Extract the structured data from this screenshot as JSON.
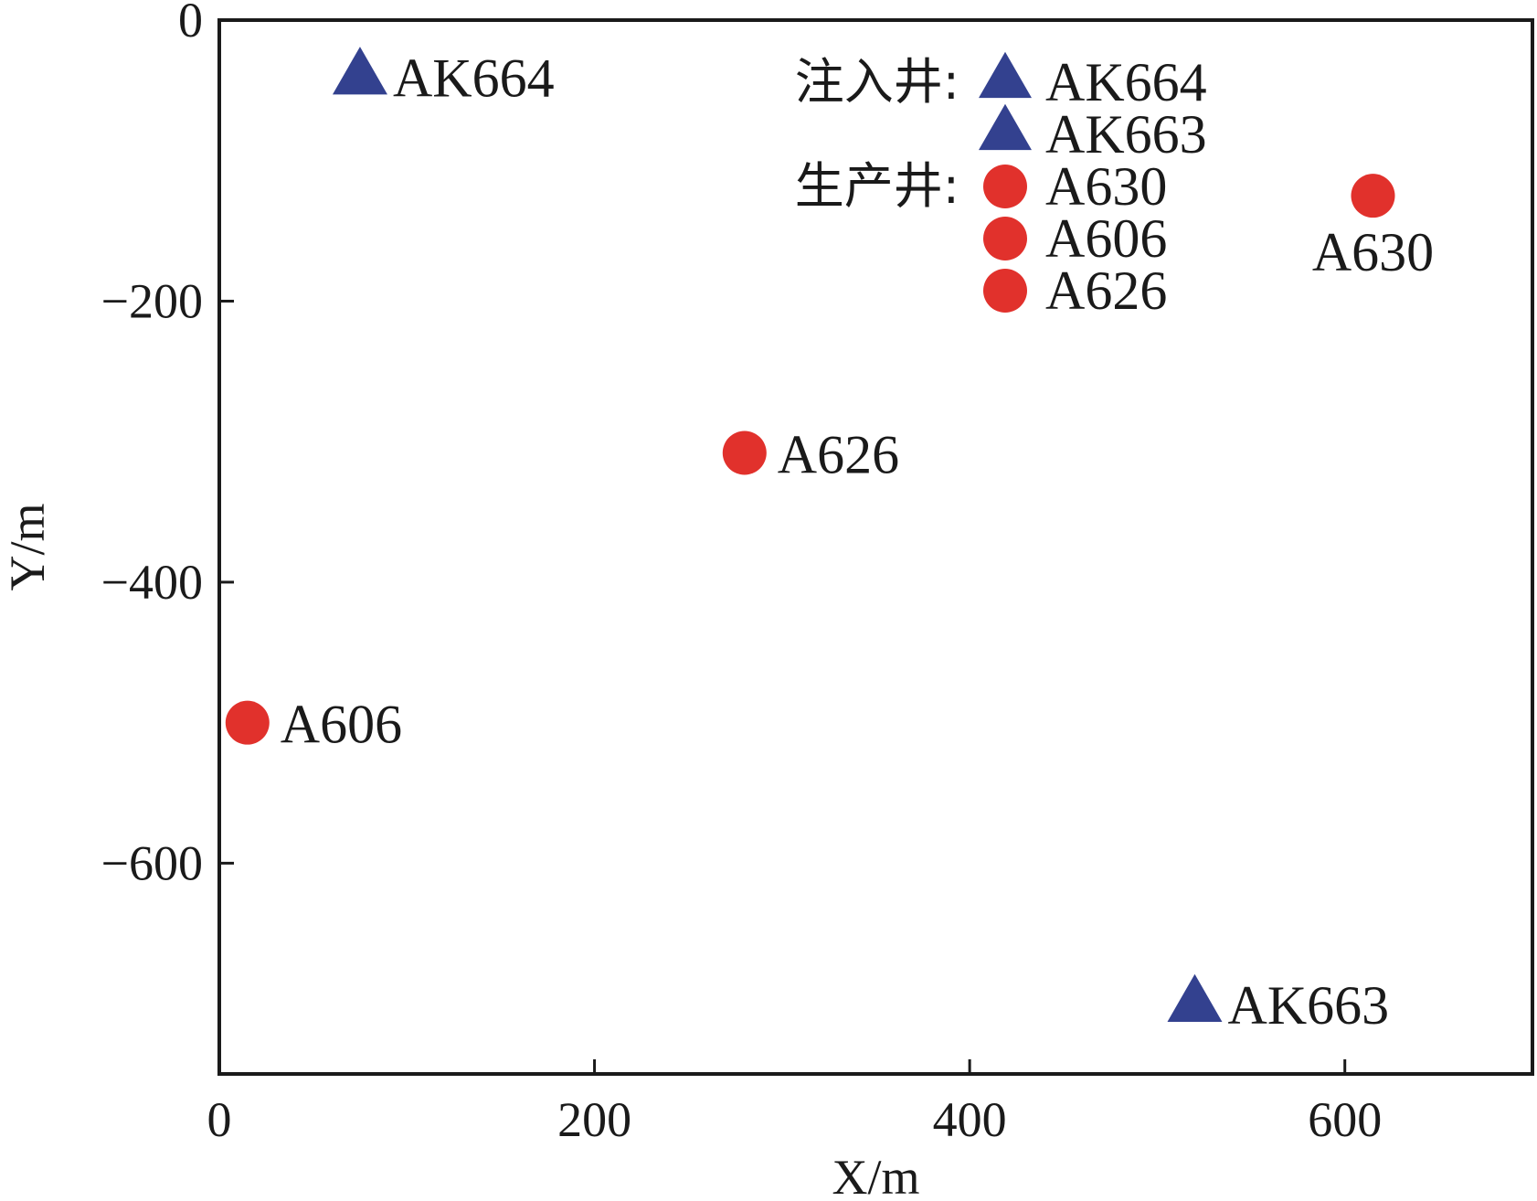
{
  "chart_data": {
    "type": "scatter",
    "title": "",
    "xlabel": "X/m",
    "ylabel": "Y/m",
    "xlim": [
      0,
      700
    ],
    "ylim": [
      -750,
      0
    ],
    "xticks": [
      0,
      200,
      400,
      600
    ],
    "yticks": [
      0,
      -200,
      -400,
      -600
    ],
    "grid": false,
    "legend": {
      "placement": "top-center-right",
      "groups": [
        {
          "heading": "注入井:",
          "marker": "triangle",
          "entries": [
            "AK664",
            "AK663"
          ]
        },
        {
          "heading": "生产井:",
          "marker": "circle",
          "entries": [
            "A630",
            "A606",
            "A626"
          ]
        }
      ]
    },
    "series": [
      {
        "name": "注入井",
        "marker": "triangle",
        "color": "#33418f",
        "points": [
          {
            "label": "AK664",
            "x": 75,
            "y": -40
          },
          {
            "label": "AK663",
            "x": 520,
            "y": -700
          }
        ]
      },
      {
        "name": "生产井",
        "marker": "circle",
        "color": "#e1312c",
        "points": [
          {
            "label": "A630",
            "x": 615,
            "y": -125
          },
          {
            "label": "A626",
            "x": 280,
            "y": -308
          },
          {
            "label": "A606",
            "x": 15,
            "y": -500
          }
        ]
      }
    ]
  }
}
